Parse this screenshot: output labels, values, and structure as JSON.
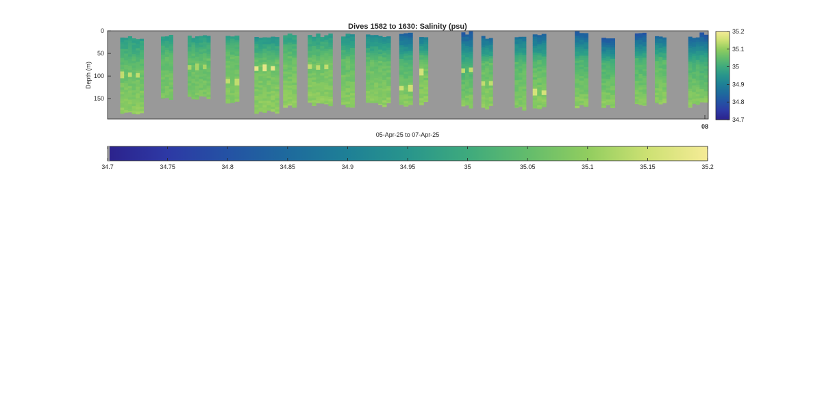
{
  "chart_data": {
    "type": "heatmap",
    "title": "Dives 1582 to 1630: Salinity (psu)",
    "xlabel": "05-Apr-25 to 07-Apr-25",
    "ylabel": "Depth (m)",
    "ylim": [
      195,
      0
    ],
    "yticks": [
      0,
      50,
      100,
      150
    ],
    "xticks": [
      "08"
    ],
    "background_color": "#999999",
    "grid": false,
    "colormap": "parula-like (dark blue → green → pale yellow)",
    "clim": [
      34.7,
      35.2
    ],
    "side_colorbar": {
      "ticks": [
        "35.2",
        "35.1",
        "35",
        "34.9",
        "34.8",
        "34.7"
      ]
    },
    "horizontal_colorbar": {
      "ticks": [
        "34.7",
        "34.75",
        "34.8",
        "34.85",
        "34.9",
        "34.95",
        "35",
        "35.05",
        "35.1",
        "35.15",
        "35.2"
      ]
    },
    "profile_groups": [
      {
        "start": 0.19,
        "end": 0.54,
        "top": 15,
        "bottom": 182,
        "surface": 34.97,
        "mid": 35.05,
        "deep": 35.1,
        "anomaly": {
          "depth": 95,
          "value": 35.14
        }
      },
      {
        "start": 0.8,
        "end": 0.98,
        "top": 12,
        "bottom": 150,
        "surface": 34.97,
        "mid": 35.05,
        "deep": 35.08
      },
      {
        "start": 1.2,
        "end": 1.54,
        "top": 12,
        "bottom": 147,
        "surface": 34.97,
        "mid": 35.05,
        "deep": 35.08,
        "anomaly": {
          "depth": 78,
          "value": 35.12
        }
      },
      {
        "start": 1.77,
        "end": 1.97,
        "top": 10,
        "bottom": 158,
        "surface": 34.98,
        "mid": 35.06,
        "deep": 35.09,
        "anomaly": {
          "depth": 110,
          "value": 35.14
        }
      },
      {
        "start": 2.2,
        "end": 2.57,
        "top": 12,
        "bottom": 178,
        "surface": 34.95,
        "mid": 35.06,
        "deep": 35.1,
        "anomaly": {
          "depth": 80,
          "value": 35.18
        }
      },
      {
        "start": 2.63,
        "end": 2.83,
        "top": 10,
        "bottom": 165,
        "surface": 34.98,
        "mid": 35.06,
        "deep": 35.1
      },
      {
        "start": 3.0,
        "end": 3.37,
        "top": 10,
        "bottom": 163,
        "surface": 34.97,
        "mid": 35.06,
        "deep": 35.1,
        "anomaly": {
          "depth": 78,
          "value": 35.14
        }
      },
      {
        "start": 3.5,
        "end": 3.7,
        "top": 10,
        "bottom": 165,
        "surface": 34.95,
        "mid": 35.05,
        "deep": 35.1
      },
      {
        "start": 3.87,
        "end": 4.24,
        "top": 12,
        "bottom": 163,
        "surface": 34.93,
        "mid": 35.05,
        "deep": 35.1
      },
      {
        "start": 4.37,
        "end": 4.57,
        "top": 8,
        "bottom": 163,
        "surface": 34.84,
        "mid": 35.02,
        "deep": 35.1,
        "anomaly": {
          "depth": 125,
          "value": 35.15
        }
      },
      {
        "start": 4.67,
        "end": 4.8,
        "top": 12,
        "bottom": 160,
        "surface": 34.88,
        "mid": 35.06,
        "deep": 35.1,
        "anomaly": {
          "depth": 88,
          "value": 35.16
        }
      },
      {
        "start": 5.3,
        "end": 5.47,
        "top": 5,
        "bottom": 168,
        "surface": 34.82,
        "mid": 35.0,
        "deep": 35.1,
        "anomaly": {
          "depth": 85,
          "value": 35.14
        }
      },
      {
        "start": 5.6,
        "end": 5.77,
        "top": 15,
        "bottom": 170,
        "surface": 34.86,
        "mid": 35.05,
        "deep": 35.1,
        "anomaly": {
          "depth": 115,
          "value": 35.14
        }
      },
      {
        "start": 6.1,
        "end": 6.27,
        "top": 15,
        "bottom": 172,
        "surface": 34.88,
        "mid": 35.04,
        "deep": 35.09
      },
      {
        "start": 6.37,
        "end": 6.57,
        "top": 10,
        "bottom": 172,
        "surface": 34.85,
        "mid": 35.04,
        "deep": 35.1,
        "anomaly": {
          "depth": 133,
          "value": 35.16
        }
      },
      {
        "start": 7.0,
        "end": 7.2,
        "top": 5,
        "bottom": 168,
        "surface": 34.83,
        "mid": 35.02,
        "deep": 35.1
      },
      {
        "start": 7.4,
        "end": 7.6,
        "top": 15,
        "bottom": 168,
        "surface": 34.8,
        "mid": 35.02,
        "deep": 35.1
      },
      {
        "start": 7.9,
        "end": 8.07,
        "top": 5,
        "bottom": 165,
        "surface": 34.8,
        "mid": 35.02,
        "deep": 35.1
      },
      {
        "start": 8.2,
        "end": 8.37,
        "top": 12,
        "bottom": 162,
        "surface": 34.86,
        "mid": 35.04,
        "deep": 35.1
      },
      {
        "start": 8.7,
        "end": 8.87,
        "top": 15,
        "bottom": 165,
        "surface": 34.84,
        "mid": 35.02,
        "deep": 35.1
      },
      {
        "start": 8.87,
        "end": 9.0,
        "top": 5,
        "bottom": 162,
        "surface": 34.8,
        "mid": 35.0,
        "deep": 35.1
      }
    ]
  }
}
